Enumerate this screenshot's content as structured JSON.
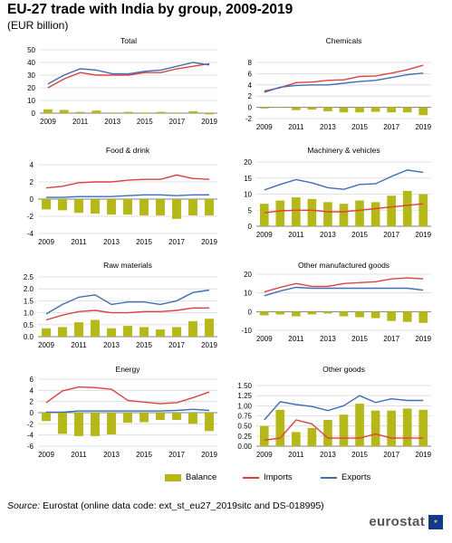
{
  "title": "EU-27 trade with India by group, 2009-2019",
  "subtitle": "(EUR billion)",
  "colors": {
    "balance": "#b5b815",
    "imports": "#e0403d",
    "exports": "#3c6fb6",
    "grid": "#d9d9d9",
    "axis": "#808080"
  },
  "legend": {
    "balance": "Balance",
    "imports": "Imports",
    "exports": "Exports"
  },
  "source": {
    "label": "Source:",
    "text": "Eurostat (online data code: ext_st_eu27_2019sitc and DS-018995)"
  },
  "logo": {
    "text": "eurostat",
    "icon": "eu-flag-icon"
  },
  "chart_data": [
    {
      "type": "bar+line",
      "title": "Total",
      "years": [
        2009,
        2010,
        2011,
        2012,
        2013,
        2014,
        2015,
        2016,
        2017,
        2018,
        2019
      ],
      "x_ticks": [
        "2009",
        "2011",
        "2013",
        "2015",
        "2017",
        "2019"
      ],
      "ylim": [
        0,
        50
      ],
      "yticks": [
        0,
        10,
        20,
        30,
        40,
        50
      ],
      "series": [
        {
          "name": "Balance",
          "type": "bar",
          "values": [
            3,
            2.5,
            1,
            2,
            0.5,
            1,
            0.5,
            1,
            0.5,
            1.5,
            -1
          ]
        },
        {
          "name": "Imports",
          "type": "line",
          "values": [
            20,
            27,
            32,
            30,
            30,
            30,
            32,
            32,
            35,
            37,
            39
          ]
        },
        {
          "name": "Exports",
          "type": "line",
          "values": [
            23,
            30,
            35,
            34,
            31,
            31,
            33,
            34,
            37,
            40,
            38
          ]
        }
      ]
    },
    {
      "type": "bar+line",
      "title": "Chemicals",
      "years": [
        2009,
        2010,
        2011,
        2012,
        2013,
        2014,
        2015,
        2016,
        2017,
        2018,
        2019
      ],
      "x_ticks": [
        "2009",
        "2011",
        "2013",
        "2015",
        "2017",
        "2019"
      ],
      "ylim": [
        -2,
        8
      ],
      "yticks": [
        -2,
        0,
        2,
        4,
        6,
        8
      ],
      "series": [
        {
          "name": "Balance",
          "type": "bar",
          "values": [
            -0.2,
            0.1,
            -0.5,
            -0.4,
            -0.7,
            -0.9,
            -0.9,
            -0.8,
            -0.9,
            -0.9,
            -1.4
          ]
        },
        {
          "name": "Imports",
          "type": "line",
          "values": [
            2.9,
            3.5,
            4.4,
            4.5,
            4.8,
            4.9,
            5.5,
            5.6,
            6.1,
            6.7,
            7.5
          ]
        },
        {
          "name": "Exports",
          "type": "line",
          "values": [
            2.7,
            3.6,
            3.9,
            4.0,
            4.0,
            4.3,
            4.6,
            4.8,
            5.3,
            5.8,
            6.1
          ]
        }
      ]
    },
    {
      "type": "bar+line",
      "title": "Food & drink",
      "years": [
        2009,
        2010,
        2011,
        2012,
        2013,
        2014,
        2015,
        2016,
        2017,
        2018,
        2019
      ],
      "x_ticks": [
        "2009",
        "2011",
        "2013",
        "2015",
        "2017",
        "2019"
      ],
      "ylim": [
        -4,
        4
      ],
      "yticks": [
        -4,
        -2,
        0,
        2,
        4
      ],
      "series": [
        {
          "name": "Balance",
          "type": "bar",
          "values": [
            -1.2,
            -1.3,
            -1.6,
            -1.7,
            -1.8,
            -1.8,
            -1.9,
            -1.9,
            -2.3,
            -1.9,
            -1.9
          ]
        },
        {
          "name": "Imports",
          "type": "line",
          "values": [
            1.3,
            1.5,
            1.9,
            2.0,
            2.0,
            2.2,
            2.3,
            2.3,
            2.8,
            2.4,
            2.3
          ]
        },
        {
          "name": "Exports",
          "type": "line",
          "values": [
            0.2,
            0.2,
            0.3,
            0.3,
            0.3,
            0.4,
            0.5,
            0.5,
            0.4,
            0.5,
            0.5
          ]
        }
      ]
    },
    {
      "type": "bar+line",
      "title": "Machinery & vehicles",
      "years": [
        2009,
        2010,
        2011,
        2012,
        2013,
        2014,
        2015,
        2016,
        2017,
        2018,
        2019
      ],
      "x_ticks": [
        "2009",
        "2011",
        "2013",
        "2015",
        "2017",
        "2019"
      ],
      "ylim": [
        0,
        20
      ],
      "yticks": [
        0,
        5,
        10,
        15,
        20
      ],
      "series": [
        {
          "name": "Balance",
          "type": "bar",
          "values": [
            7,
            8,
            9,
            8.5,
            7.5,
            7,
            8,
            7.5,
            9.5,
            11,
            10
          ]
        },
        {
          "name": "Imports",
          "type": "line",
          "values": [
            4.2,
            4.8,
            5.0,
            5.0,
            4.5,
            4.5,
            5.0,
            5.5,
            6.0,
            6.5,
            7.0
          ]
        },
        {
          "name": "Exports",
          "type": "line",
          "values": [
            11.3,
            13.0,
            14.5,
            13.5,
            12.0,
            11.5,
            13.0,
            13.2,
            15.5,
            17.5,
            16.8
          ]
        }
      ]
    },
    {
      "type": "bar+line",
      "title": "Raw materials",
      "years": [
        2009,
        2010,
        2011,
        2012,
        2013,
        2014,
        2015,
        2016,
        2017,
        2018,
        2019
      ],
      "x_ticks": [
        "2009",
        "2011",
        "2013",
        "2015",
        "2017",
        "2019"
      ],
      "ylim": [
        0,
        2.5
      ],
      "yticks": [
        0,
        0.5,
        1.0,
        1.5,
        2.0,
        2.5
      ],
      "ytick_labels": [
        "0.0",
        "0.5",
        "1.0",
        "1.5",
        "2.0",
        "2.5"
      ],
      "series": [
        {
          "name": "Balance",
          "type": "bar",
          "values": [
            0.35,
            0.4,
            0.6,
            0.7,
            0.35,
            0.45,
            0.4,
            0.3,
            0.4,
            0.65,
            0.75
          ]
        },
        {
          "name": "Imports",
          "type": "line",
          "values": [
            0.7,
            0.9,
            1.05,
            1.1,
            1.0,
            1.0,
            1.05,
            1.05,
            1.1,
            1.2,
            1.2
          ]
        },
        {
          "name": "Exports",
          "type": "line",
          "values": [
            0.95,
            1.35,
            1.65,
            1.75,
            1.35,
            1.45,
            1.45,
            1.35,
            1.5,
            1.85,
            1.95
          ]
        }
      ]
    },
    {
      "type": "bar+line",
      "title": "Other manufactured goods",
      "years": [
        2009,
        2010,
        2011,
        2012,
        2013,
        2014,
        2015,
        2016,
        2017,
        2018,
        2019
      ],
      "x_ticks": [
        "2009",
        "2011",
        "2013",
        "2015",
        "2017",
        "2019"
      ],
      "ylim": [
        -10,
        20
      ],
      "yticks": [
        -10,
        0,
        10,
        20
      ],
      "series": [
        {
          "name": "Balance",
          "type": "bar",
          "values": [
            -2,
            -1.5,
            -2.5,
            -1.5,
            -1,
            -2.5,
            -3,
            -3.5,
            -5,
            -5.5,
            -6
          ]
        },
        {
          "name": "Imports",
          "type": "line",
          "values": [
            10.5,
            13,
            15,
            13.5,
            13.5,
            15,
            15.5,
            16,
            17.5,
            18,
            17.5
          ]
        },
        {
          "name": "Exports",
          "type": "line",
          "values": [
            8.5,
            11,
            13,
            12.5,
            12.5,
            12.5,
            12.5,
            12.5,
            12.5,
            12.5,
            11.5
          ]
        }
      ]
    },
    {
      "type": "bar+line",
      "title": "Energy",
      "years": [
        2009,
        2010,
        2011,
        2012,
        2013,
        2014,
        2015,
        2016,
        2017,
        2018,
        2019
      ],
      "x_ticks": [
        "2009",
        "2011",
        "2013",
        "2015",
        "2017",
        "2019"
      ],
      "ylim": [
        -6,
        6
      ],
      "yticks": [
        -6,
        -4,
        -2,
        0,
        2,
        4,
        6
      ],
      "series": [
        {
          "name": "Balance",
          "type": "bar",
          "values": [
            -1.5,
            -3.8,
            -4.2,
            -4.2,
            -3.9,
            -1.8,
            -1.7,
            -1.3,
            -1.3,
            -2.0,
            -3.3
          ]
        },
        {
          "name": "Imports",
          "type": "line",
          "values": [
            1.8,
            3.9,
            4.6,
            4.5,
            4.2,
            2.2,
            1.9,
            1.6,
            1.8,
            2.7,
            3.7
          ]
        },
        {
          "name": "Exports",
          "type": "line",
          "values": [
            0.1,
            0.1,
            0.3,
            0.3,
            0.3,
            0.3,
            0.3,
            0.3,
            0.4,
            0.6,
            0.4
          ]
        }
      ]
    },
    {
      "type": "bar+line",
      "title": "Other goods",
      "years": [
        2009,
        2010,
        2011,
        2012,
        2013,
        2014,
        2015,
        2016,
        2017,
        2018,
        2019
      ],
      "x_ticks": [
        "2009",
        "2011",
        "2013",
        "2015",
        "2017",
        "2019"
      ],
      "ylim": [
        0,
        1.5
      ],
      "yticks": [
        0,
        0.25,
        0.5,
        0.75,
        1.0,
        1.25,
        1.5
      ],
      "ytick_labels": [
        "0.00",
        "0.25",
        "0.50",
        "0.75",
        "1.00",
        "1.25",
        "1.50"
      ],
      "series": [
        {
          "name": "Balance",
          "type": "bar",
          "values": [
            0.5,
            0.9,
            0.35,
            0.45,
            0.65,
            0.78,
            1.05,
            0.88,
            0.88,
            0.93,
            0.9
          ]
        },
        {
          "name": "Imports",
          "type": "line",
          "values": [
            0.15,
            0.2,
            0.65,
            0.55,
            0.2,
            0.2,
            0.2,
            0.3,
            0.2,
            0.2,
            0.2
          ]
        },
        {
          "name": "Exports",
          "type": "line",
          "values": [
            0.65,
            1.1,
            1.03,
            0.98,
            0.88,
            1.0,
            1.25,
            1.08,
            1.17,
            1.13,
            1.13
          ]
        }
      ]
    }
  ]
}
